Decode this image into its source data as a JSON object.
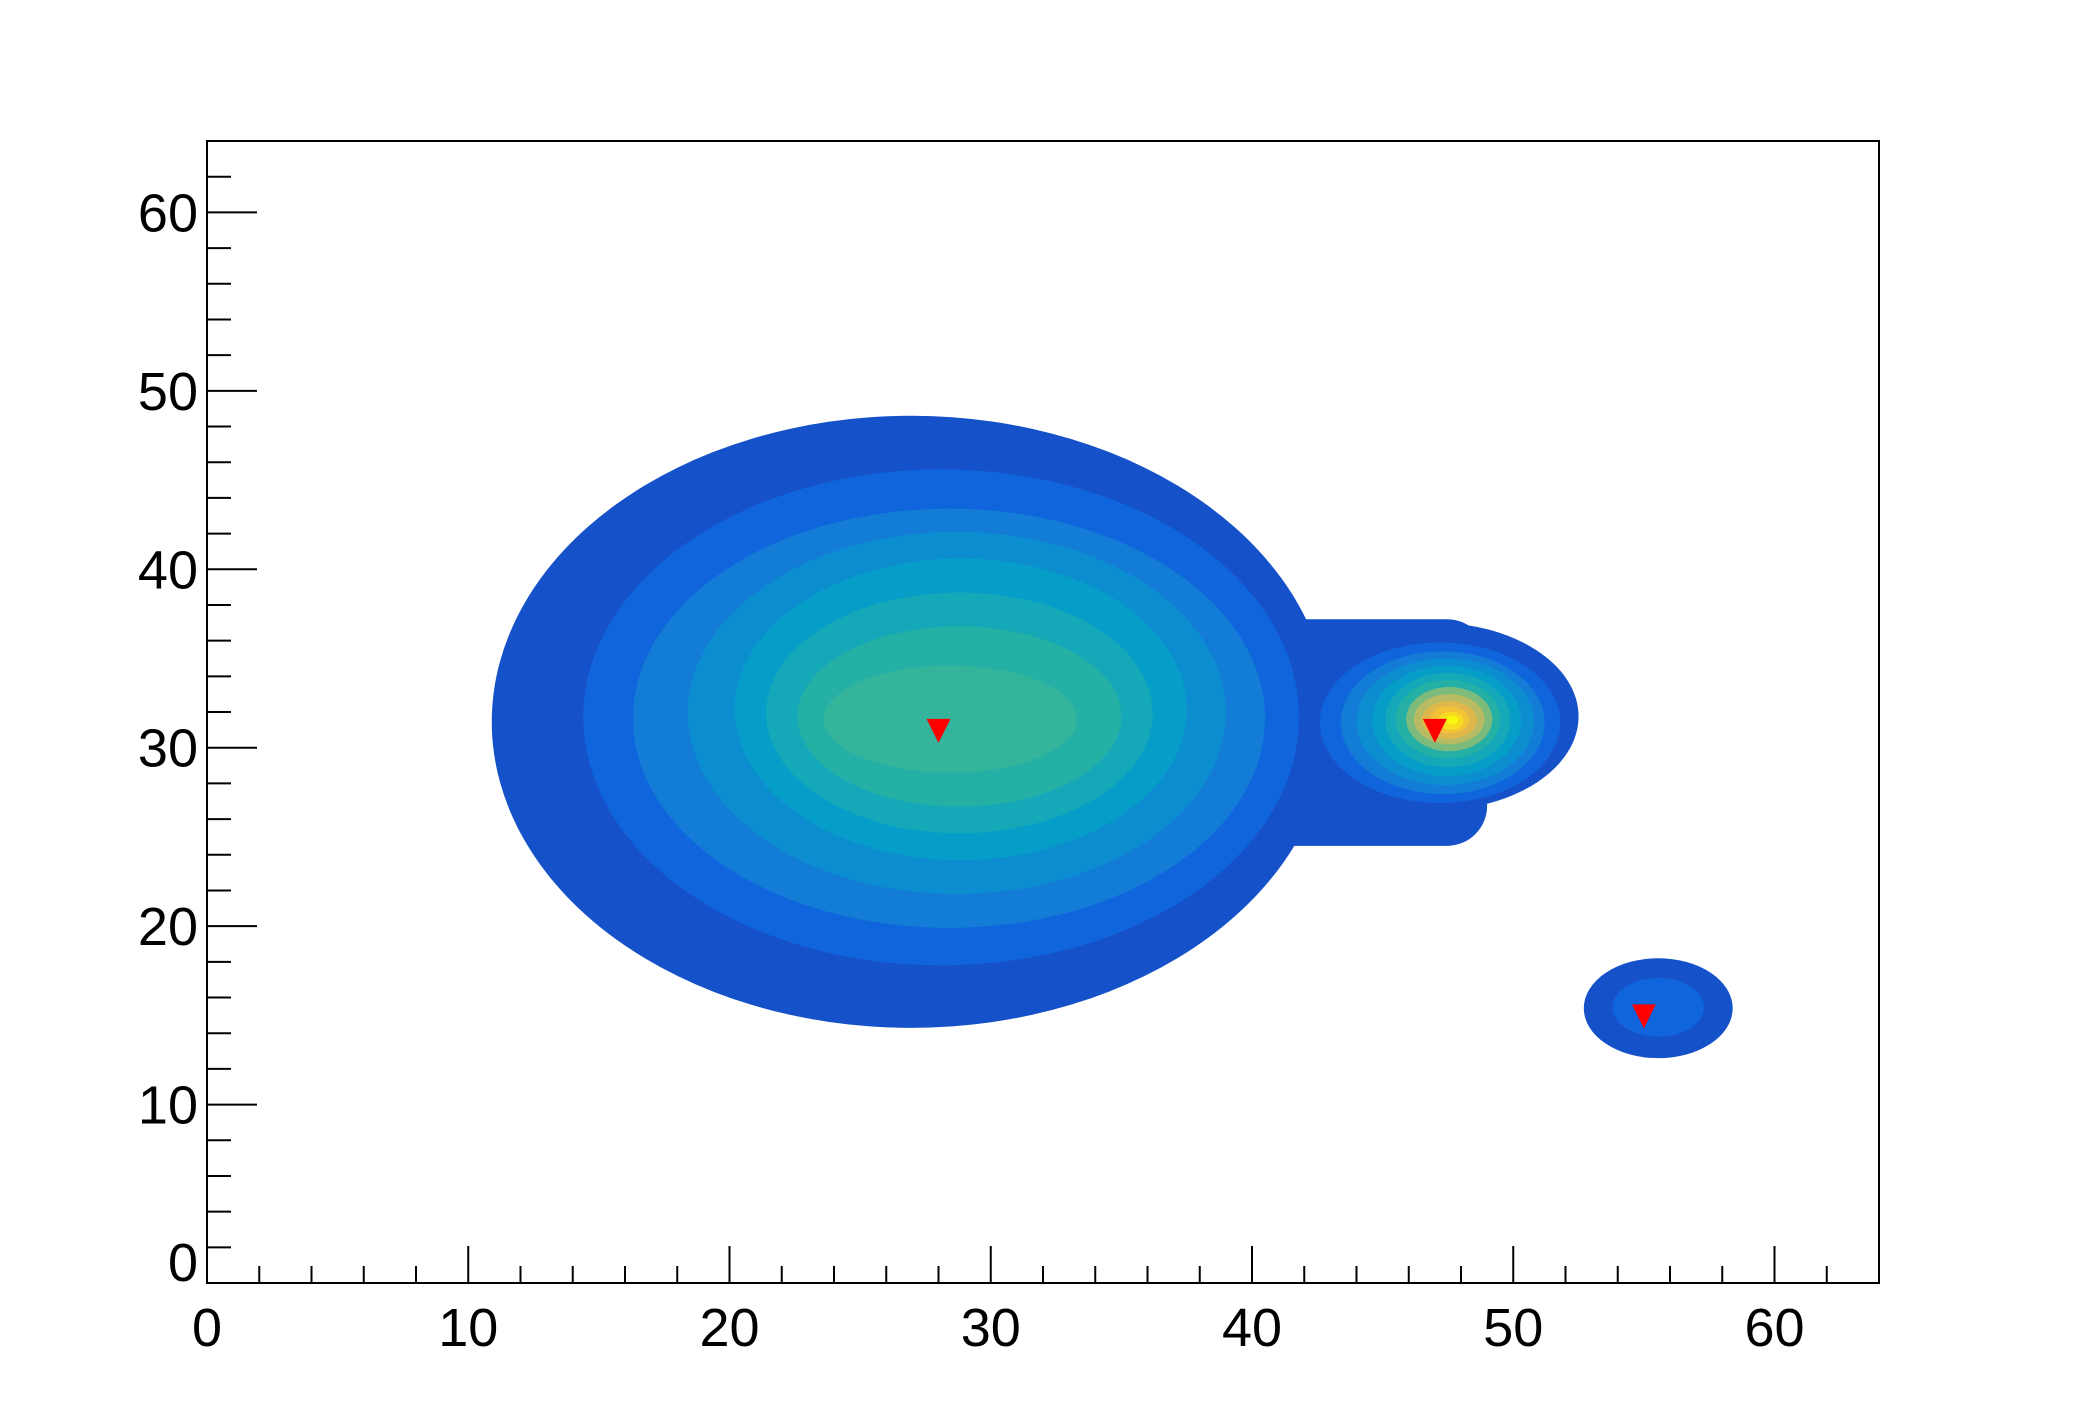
{
  "chart_data": {
    "type": "contour",
    "title": "",
    "xlabel": "",
    "ylabel": "",
    "xlim": [
      0,
      64
    ],
    "ylim": [
      0,
      64
    ],
    "grid": false,
    "x_ticks": [
      0,
      10,
      20,
      30,
      40,
      50,
      60
    ],
    "y_ticks": [
      0,
      10,
      20,
      30,
      40,
      50,
      60
    ],
    "x_tick_labels": [
      "0",
      "10",
      "20",
      "30",
      "40",
      "50",
      "60"
    ],
    "y_tick_labels": [
      "0",
      "10",
      "20",
      "30",
      "40",
      "50",
      "60"
    ],
    "palette": [
      "#1551c9",
      "#1165dc",
      "#127cd6",
      "#0c8dd0",
      "#079dc9",
      "#14a8b8",
      "#25b0a6",
      "#35b49c",
      "#7cbb7c",
      "#b8bb62",
      "#e0b84a",
      "#f5c236",
      "#f7dc20",
      "#f8f80e"
    ],
    "peaks": [
      {
        "center": [
          29,
          31.5
        ],
        "levels": [
          [
            10.9,
            43.0,
            14.3,
            48.6
          ],
          [
            14.4,
            41.8,
            17.8,
            45.6
          ],
          [
            16.3,
            40.5,
            19.9,
            43.4
          ],
          [
            18.4,
            39.0,
            21.8,
            42.1
          ],
          [
            20.2,
            37.5,
            23.7,
            40.6
          ],
          [
            21.4,
            36.2,
            25.2,
            38.7
          ],
          [
            22.6,
            35.0,
            26.7,
            36.8
          ],
          [
            23.6,
            33.3,
            28.6,
            34.6
          ]
        ],
        "level_index": [
          0,
          1,
          2,
          3,
          4,
          5,
          6,
          7
        ]
      },
      {
        "center": [
          47.4,
          31.5
        ],
        "levels": [
          [
            41.5,
            52.5,
            26.5,
            37.0
          ],
          [
            42.6,
            51.8,
            26.9,
            35.9
          ],
          [
            43.4,
            51.2,
            27.4,
            35.4
          ],
          [
            44.0,
            50.8,
            27.9,
            35.0
          ],
          [
            44.6,
            50.3,
            28.4,
            34.6
          ],
          [
            45.1,
            49.9,
            28.9,
            34.2
          ],
          [
            45.5,
            49.5,
            29.4,
            33.8
          ],
          [
            45.9,
            49.2,
            29.8,
            33.4
          ],
          [
            46.2,
            48.9,
            30.2,
            33.0
          ],
          [
            46.5,
            48.6,
            30.5,
            32.6
          ],
          [
            46.8,
            48.3,
            30.8,
            32.3
          ],
          [
            47.1,
            48.1,
            31.0,
            32.0
          ],
          [
            47.4,
            47.9,
            31.3,
            31.8
          ]
        ],
        "level_index": [
          0,
          1,
          2,
          3,
          4,
          5,
          6,
          8,
          9,
          10,
          11,
          12,
          13
        ]
      },
      {
        "center": [
          55.5,
          15.4
        ],
        "levels": [
          [
            52.7,
            58.4,
            12.6,
            18.2
          ],
          [
            53.8,
            57.3,
            13.8,
            17.1
          ]
        ],
        "level_index": [
          0,
          1
        ]
      }
    ],
    "bridge": [
      40,
      49,
      24.5,
      37.2
    ],
    "markers": {
      "symbol": "triangle-down",
      "color": "#ff0000",
      "points": [
        [
          28,
          31
        ],
        [
          47,
          31
        ],
        [
          55,
          15
        ]
      ]
    }
  }
}
